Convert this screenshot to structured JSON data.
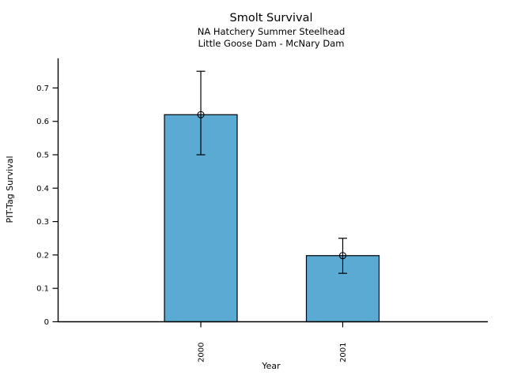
{
  "chart_data": {
    "type": "bar",
    "title": "Smolt Survival",
    "subtitle1": "NA Hatchery Summer Steelhead",
    "subtitle2": "Little Goose Dam - McNary Dam",
    "xlabel": "Year",
    "ylabel": "PIT-Tag Survival",
    "categories": [
      "2000",
      "2001"
    ],
    "values": [
      0.62,
      0.198
    ],
    "error_low": [
      0.5,
      0.145
    ],
    "error_high": [
      0.75,
      0.25
    ],
    "y_ticks": [
      0,
      0.1,
      0.2,
      0.3,
      0.4,
      0.5,
      0.6,
      0.7
    ],
    "ylim": [
      0,
      0.79
    ],
    "grid": false,
    "legend": "none",
    "bar_color": "#5aaad4",
    "bar_edge_color": "#000000",
    "axis_color": "#000000",
    "background_color": "#ffffff",
    "marker": "open-circle"
  }
}
